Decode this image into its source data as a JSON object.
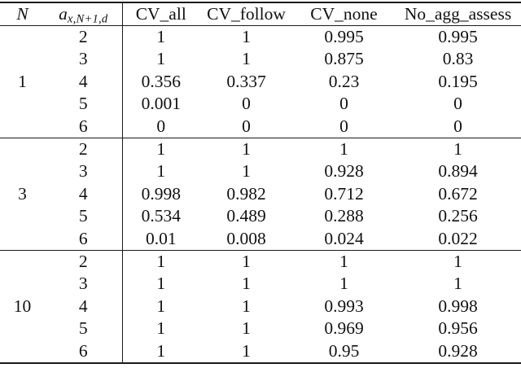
{
  "table": {
    "headers": {
      "n": "N",
      "a_base": "a",
      "a_sub": "x,N+1,d",
      "cols": [
        "CV_all",
        "CV_follow",
        "CV_none",
        "No_agg_assess"
      ]
    },
    "groups": [
      {
        "n": "1",
        "rows": [
          {
            "a": "2",
            "values": [
              "1",
              "1",
              "0.995",
              "0.995"
            ]
          },
          {
            "a": "3",
            "values": [
              "1",
              "1",
              "0.875",
              "0.83"
            ]
          },
          {
            "a": "4",
            "values": [
              "0.356",
              "0.337",
              "0.23",
              "0.195"
            ]
          },
          {
            "a": "5",
            "values": [
              "0.001",
              "0",
              "0",
              "0"
            ]
          },
          {
            "a": "6",
            "values": [
              "0",
              "0",
              "0",
              "0"
            ]
          }
        ]
      },
      {
        "n": "3",
        "rows": [
          {
            "a": "2",
            "values": [
              "1",
              "1",
              "1",
              "1"
            ]
          },
          {
            "a": "3",
            "values": [
              "1",
              "1",
              "0.928",
              "0.894"
            ]
          },
          {
            "a": "4",
            "values": [
              "0.998",
              "0.982",
              "0.712",
              "0.672"
            ]
          },
          {
            "a": "5",
            "values": [
              "0.534",
              "0.489",
              "0.288",
              "0.256"
            ]
          },
          {
            "a": "6",
            "values": [
              "0.01",
              "0.008",
              "0.024",
              "0.022"
            ]
          }
        ]
      },
      {
        "n": "10",
        "rows": [
          {
            "a": "2",
            "values": [
              "1",
              "1",
              "1",
              "1"
            ]
          },
          {
            "a": "3",
            "values": [
              "1",
              "1",
              "1",
              "1"
            ]
          },
          {
            "a": "4",
            "values": [
              "1",
              "1",
              "0.993",
              "0.998"
            ]
          },
          {
            "a": "5",
            "values": [
              "1",
              "1",
              "0.969",
              "0.956"
            ]
          },
          {
            "a": "6",
            "values": [
              "1",
              "1",
              "0.95",
              "0.928"
            ]
          }
        ]
      }
    ]
  },
  "chart_data": {
    "type": "table",
    "columns": [
      "N",
      "a_x,N+1,d",
      "CV_all",
      "CV_follow",
      "CV_none",
      "No_agg_assess"
    ],
    "rows": [
      [
        "1",
        "2",
        "1",
        "1",
        "0.995",
        "0.995"
      ],
      [
        "1",
        "3",
        "1",
        "1",
        "0.875",
        "0.83"
      ],
      [
        "1",
        "4",
        "0.356",
        "0.337",
        "0.23",
        "0.195"
      ],
      [
        "1",
        "5",
        "0.001",
        "0",
        "0",
        "0"
      ],
      [
        "1",
        "6",
        "0",
        "0",
        "0",
        "0"
      ],
      [
        "3",
        "2",
        "1",
        "1",
        "1",
        "1"
      ],
      [
        "3",
        "3",
        "1",
        "1",
        "0.928",
        "0.894"
      ],
      [
        "3",
        "4",
        "0.998",
        "0.982",
        "0.712",
        "0.672"
      ],
      [
        "3",
        "5",
        "0.534",
        "0.489",
        "0.288",
        "0.256"
      ],
      [
        "3",
        "6",
        "0.01",
        "0.008",
        "0.024",
        "0.022"
      ],
      [
        "10",
        "2",
        "1",
        "1",
        "1",
        "1"
      ],
      [
        "10",
        "3",
        "1",
        "1",
        "1",
        "1"
      ],
      [
        "10",
        "4",
        "1",
        "1",
        "0.993",
        "0.998"
      ],
      [
        "10",
        "5",
        "1",
        "1",
        "0.969",
        "0.956"
      ],
      [
        "10",
        "6",
        "1",
        "1",
        "0.95",
        "0.928"
      ]
    ]
  }
}
